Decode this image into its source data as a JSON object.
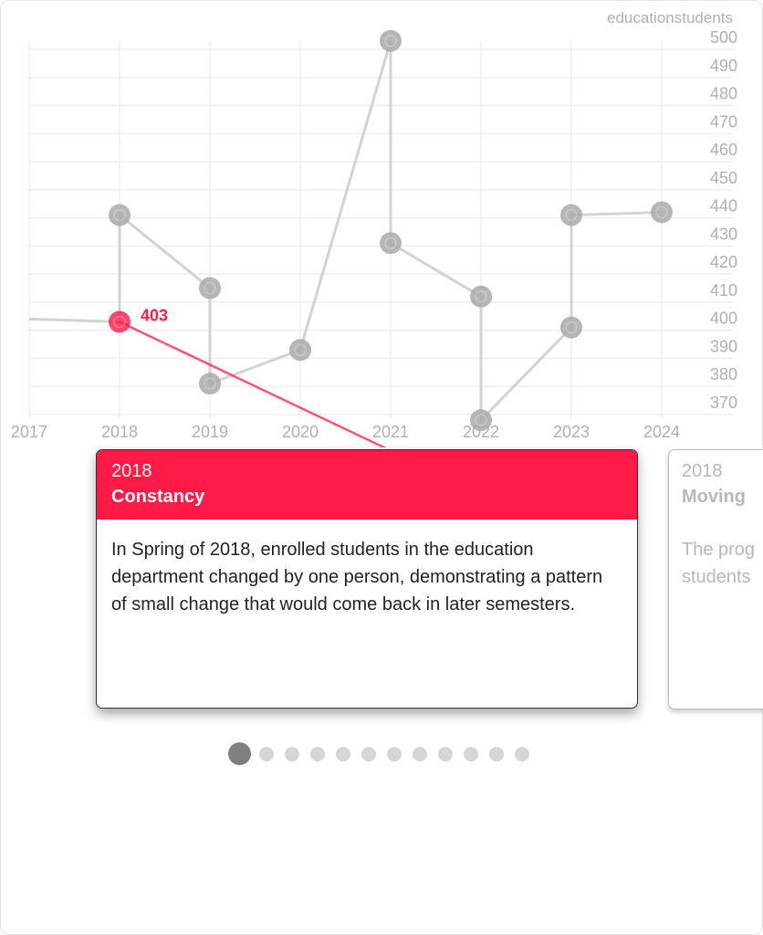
{
  "chart_data": {
    "type": "line",
    "title": "educationstudents",
    "xlabel": "",
    "ylabel": "",
    "x_ticks": [
      "2017",
      "2018",
      "2019",
      "2020",
      "2021",
      "2022",
      "2023",
      "2024"
    ],
    "y_ticks": [
      "500",
      "490",
      "480",
      "470",
      "460",
      "450",
      "440",
      "430",
      "420",
      "410",
      "400",
      "390",
      "380",
      "370"
    ],
    "xlim": [
      2017,
      2024.8
    ],
    "ylim": [
      366,
      503
    ],
    "y_axis_position": "right",
    "grid": true,
    "points": [
      {
        "x": 2017,
        "y": 404
      },
      {
        "x": 2018,
        "y": 403
      },
      {
        "x": 2018,
        "y": 441
      },
      {
        "x": 2019,
        "y": 415
      },
      {
        "x": 2019,
        "y": 381
      },
      {
        "x": 2020,
        "y": 393
      },
      {
        "x": 2021,
        "y": 503
      },
      {
        "x": 2021,
        "y": 431
      },
      {
        "x": 2022,
        "y": 412
      },
      {
        "x": 2022,
        "y": 368
      },
      {
        "x": 2023,
        "y": 401
      },
      {
        "x": 2023,
        "y": 441
      },
      {
        "x": 2024,
        "y": 442
      }
    ],
    "highlighted_index": 1,
    "highlight_label": "403",
    "colors": {
      "line": "#d3d3d3",
      "marker": "#a9a9a9",
      "highlight": "#ff1a47",
      "grid": "#efefef",
      "tick": "#b0b0b0"
    }
  },
  "cards": [
    {
      "year": "2018",
      "title": "Constancy",
      "text": "In Spring of 2018, enrolled students in the education department changed by one person, demonstrating a pattern of small change that would come back in later semesters."
    },
    {
      "year": "2018",
      "title": "Moving",
      "text": "The prog\nstudents"
    }
  ],
  "pagination": {
    "total": 12,
    "active": 0
  }
}
